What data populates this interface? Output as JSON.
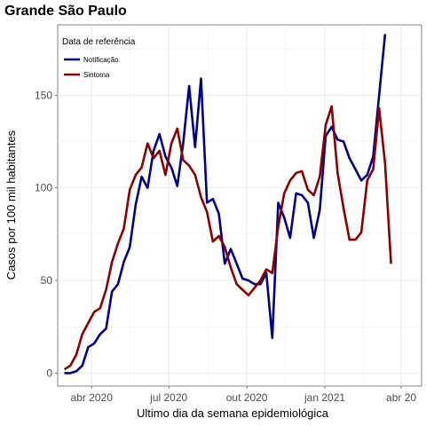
{
  "chart_data": {
    "type": "line",
    "title": "Grande São Paulo",
    "xlabel": "Ultimo dia da semana epidemiológica",
    "ylabel": "Casos por 100 mil habitantes",
    "ylim": [
      -7,
      188
    ],
    "xlim": [
      "2020-02-21",
      "2021-04-25"
    ],
    "y_ticks": [
      0,
      50,
      100,
      150
    ],
    "x_ticks": [
      {
        "date": "2020-04-01",
        "label": "abr 2020"
      },
      {
        "date": "2020-07-01",
        "label": "jul 2020"
      },
      {
        "date": "2020-10-01",
        "label": "out 2020"
      },
      {
        "date": "2021-01-01",
        "label": "jan 2021"
      },
      {
        "date": "2021-04-01",
        "label": "abr 20"
      }
    ],
    "grid": true,
    "legend": {
      "title": "Data de referência",
      "position": "top-left",
      "entries": [
        {
          "name": "Notificação",
          "color": "#00008B"
        },
        {
          "name": "Sintoma",
          "color": "#8B0000"
        }
      ]
    },
    "series": [
      {
        "name": "Notificação",
        "color": "#00008B",
        "points": [
          [
            "2020-02-29",
            0
          ],
          [
            "2020-03-07",
            0
          ],
          [
            "2020-03-14",
            1
          ],
          [
            "2020-03-21",
            4
          ],
          [
            "2020-03-28",
            14
          ],
          [
            "2020-04-04",
            16
          ],
          [
            "2020-04-11",
            21
          ],
          [
            "2020-04-18",
            24
          ],
          [
            "2020-04-25",
            44
          ],
          [
            "2020-05-02",
            48
          ],
          [
            "2020-05-09",
            60
          ],
          [
            "2020-05-16",
            68
          ],
          [
            "2020-05-23",
            91
          ],
          [
            "2020-05-30",
            106
          ],
          [
            "2020-06-06",
            100
          ],
          [
            "2020-06-13",
            120
          ],
          [
            "2020-06-20",
            129
          ],
          [
            "2020-06-27",
            117
          ],
          [
            "2020-07-04",
            111
          ],
          [
            "2020-07-11",
            101
          ],
          [
            "2020-07-18",
            124
          ],
          [
            "2020-07-25",
            155
          ],
          [
            "2020-08-01",
            122
          ],
          [
            "2020-08-08",
            159
          ],
          [
            "2020-08-15",
            92
          ],
          [
            "2020-08-22",
            94
          ],
          [
            "2020-08-29",
            86
          ],
          [
            "2020-09-05",
            59
          ],
          [
            "2020-09-12",
            67
          ],
          [
            "2020-09-19",
            59
          ],
          [
            "2020-09-26",
            51
          ],
          [
            "2020-10-03",
            50
          ],
          [
            "2020-10-10",
            48
          ],
          [
            "2020-10-17",
            48
          ],
          [
            "2020-10-24",
            54
          ],
          [
            "2020-10-31",
            19
          ],
          [
            "2020-11-07",
            92
          ],
          [
            "2020-11-14",
            84
          ],
          [
            "2020-11-21",
            73
          ],
          [
            "2020-11-28",
            97
          ],
          [
            "2020-12-05",
            96
          ],
          [
            "2020-12-12",
            92
          ],
          [
            "2020-12-19",
            73
          ],
          [
            "2020-12-26",
            88
          ],
          [
            "2021-01-02",
            128
          ],
          [
            "2021-01-09",
            133
          ],
          [
            "2021-01-16",
            126
          ],
          [
            "2021-01-23",
            125
          ],
          [
            "2021-01-30",
            116
          ],
          [
            "2021-02-06",
            110
          ],
          [
            "2021-02-13",
            104
          ],
          [
            "2021-02-20",
            107
          ],
          [
            "2021-02-27",
            117
          ],
          [
            "2021-03-06",
            150
          ],
          [
            "2021-03-13",
            183
          ]
        ]
      },
      {
        "name": "Sintoma",
        "color": "#8B0000",
        "points": [
          [
            "2020-02-29",
            2
          ],
          [
            "2020-03-07",
            4
          ],
          [
            "2020-03-14",
            10
          ],
          [
            "2020-03-21",
            21
          ],
          [
            "2020-03-28",
            27
          ],
          [
            "2020-04-04",
            33
          ],
          [
            "2020-04-11",
            35
          ],
          [
            "2020-04-18",
            45
          ],
          [
            "2020-04-25",
            60
          ],
          [
            "2020-05-02",
            70
          ],
          [
            "2020-05-09",
            78
          ],
          [
            "2020-05-16",
            99
          ],
          [
            "2020-05-23",
            107
          ],
          [
            "2020-05-30",
            111
          ],
          [
            "2020-06-06",
            124
          ],
          [
            "2020-06-13",
            116
          ],
          [
            "2020-06-20",
            120
          ],
          [
            "2020-06-27",
            107
          ],
          [
            "2020-07-04",
            124
          ],
          [
            "2020-07-11",
            132
          ],
          [
            "2020-07-18",
            115
          ],
          [
            "2020-07-25",
            112
          ],
          [
            "2020-08-01",
            107
          ],
          [
            "2020-08-08",
            95
          ],
          [
            "2020-08-15",
            87
          ],
          [
            "2020-08-22",
            71
          ],
          [
            "2020-08-29",
            74
          ],
          [
            "2020-09-05",
            68
          ],
          [
            "2020-09-12",
            57
          ],
          [
            "2020-09-19",
            48
          ],
          [
            "2020-09-26",
            45
          ],
          [
            "2020-10-03",
            42
          ],
          [
            "2020-10-10",
            46
          ],
          [
            "2020-10-17",
            50
          ],
          [
            "2020-10-24",
            56
          ],
          [
            "2020-10-31",
            54
          ],
          [
            "2020-11-07",
            79
          ],
          [
            "2020-11-14",
            97
          ],
          [
            "2020-11-21",
            104
          ],
          [
            "2020-11-28",
            108
          ],
          [
            "2020-12-05",
            109
          ],
          [
            "2020-12-12",
            99
          ],
          [
            "2020-12-19",
            96
          ],
          [
            "2020-12-26",
            106
          ],
          [
            "2021-01-02",
            134
          ],
          [
            "2021-01-09",
            144
          ],
          [
            "2021-01-16",
            108
          ],
          [
            "2021-01-23",
            89
          ],
          [
            "2021-01-30",
            72
          ],
          [
            "2021-02-06",
            72
          ],
          [
            "2021-02-13",
            76
          ],
          [
            "2021-02-20",
            104
          ],
          [
            "2021-02-27",
            110
          ],
          [
            "2021-03-06",
            143
          ],
          [
            "2021-03-13",
            113
          ],
          [
            "2021-03-20",
            59
          ]
        ]
      }
    ]
  }
}
